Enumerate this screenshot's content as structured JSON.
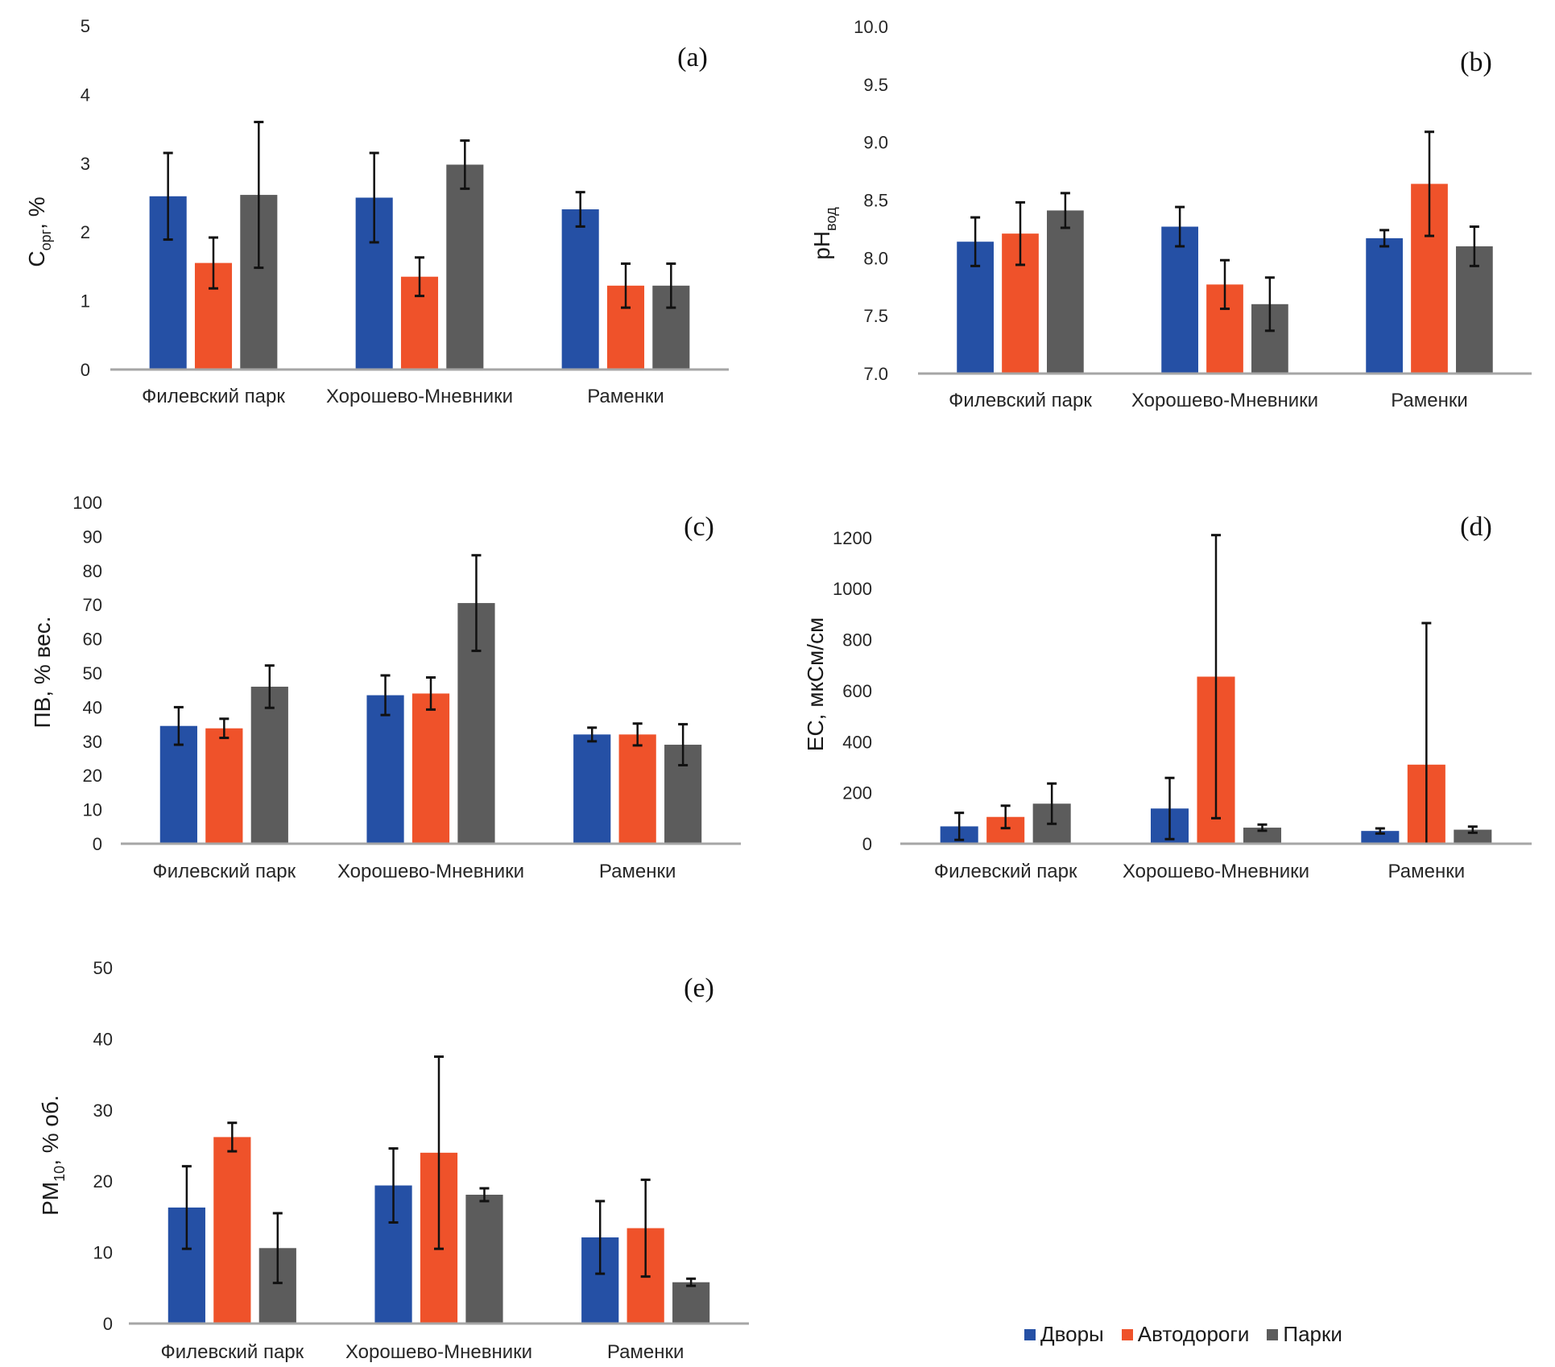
{
  "legend": {
    "series": [
      {
        "name": "Дворы",
        "color": "#2550a5"
      },
      {
        "name": "Автодороги",
        "color": "#ef522a"
      },
      {
        "name": "Парки",
        "color": "#5c5c5c"
      }
    ]
  },
  "chart_data": [
    {
      "id": "a",
      "panel_label": "(a)",
      "type": "bar",
      "ylabel_main": "C",
      "ylabel_sub": "орг",
      "ylabel_tail": ", %",
      "categories": [
        "Филевский парк",
        "Хорошево-Мневники",
        "Раменки"
      ],
      "ylim": [
        0,
        5
      ],
      "yticks": [
        0,
        1,
        2,
        3,
        4,
        5
      ],
      "ytick_labels": [
        "0",
        "1",
        "2",
        "3",
        "4",
        "5"
      ],
      "grid": false,
      "series": [
        {
          "name": "Дворы",
          "values": [
            2.52,
            2.5,
            2.33
          ],
          "err": [
            0.63,
            0.65,
            0.25
          ]
        },
        {
          "name": "Автодороги",
          "values": [
            1.55,
            1.35,
            1.22
          ],
          "err": [
            0.37,
            0.28,
            0.32
          ]
        },
        {
          "name": "Парки",
          "values": [
            2.54,
            2.98,
            1.22
          ],
          "err": [
            1.06,
            0.35,
            0.32
          ]
        }
      ]
    },
    {
      "id": "b",
      "panel_label": "(b)",
      "type": "bar",
      "ylabel_main": "pH",
      "ylabel_sub": "вод",
      "ylabel_tail": "",
      "categories": [
        "Филевский парк",
        "Хорошево-Мневники",
        "Раменки"
      ],
      "ylim": [
        7.0,
        10.0
      ],
      "yticks": [
        7.0,
        7.5,
        8.0,
        8.5,
        9.0,
        9.5,
        10.0
      ],
      "ytick_labels": [
        "7.0",
        "7.5",
        "8.0",
        "8.5",
        "9.0",
        "9.5",
        "10.0"
      ],
      "grid": false,
      "series": [
        {
          "name": "Дворы",
          "values": [
            8.14,
            8.27,
            8.17
          ],
          "err": [
            0.21,
            0.17,
            0.07
          ]
        },
        {
          "name": "Автодороги",
          "values": [
            8.21,
            7.77,
            8.64
          ],
          "err": [
            0.27,
            0.21,
            0.45
          ]
        },
        {
          "name": "Парки",
          "values": [
            8.41,
            7.6,
            8.1
          ],
          "err": [
            0.15,
            0.23,
            0.17
          ]
        }
      ]
    },
    {
      "id": "c",
      "panel_label": "(c)",
      "type": "bar",
      "ylabel_main": "ПВ, % вес.",
      "ylabel_sub": "",
      "ylabel_tail": "",
      "categories": [
        "Филевский парк",
        "Хорошево-Мневники",
        "Раменки"
      ],
      "ylim": [
        0,
        100
      ],
      "yticks": [
        0,
        10,
        20,
        30,
        40,
        50,
        60,
        70,
        80,
        90,
        100
      ],
      "ytick_labels": [
        "0",
        "10",
        "20",
        "30",
        "40",
        "50",
        "60",
        "70",
        "80",
        "90",
        "100"
      ],
      "grid": false,
      "series": [
        {
          "name": "Дворы",
          "values": [
            34.5,
            43.5,
            32.0
          ],
          "err": [
            5.5,
            5.8,
            2.0
          ]
        },
        {
          "name": "Автодороги",
          "values": [
            33.8,
            44.0,
            32.0
          ],
          "err": [
            2.8,
            4.7,
            3.2
          ]
        },
        {
          "name": "Парки",
          "values": [
            46.0,
            70.5,
            29.0
          ],
          "err": [
            6.2,
            14.0,
            6.0
          ]
        }
      ]
    },
    {
      "id": "d",
      "panel_label": "(d)",
      "type": "bar",
      "ylabel_main": "EC, мкСм/см",
      "ylabel_sub": "",
      "ylabel_tail": "",
      "categories": [
        "Филевский парк",
        "Хорошево-Мневники",
        "Раменки"
      ],
      "ylim": [
        0,
        1250
      ],
      "yticks": [
        0,
        200,
        400,
        600,
        800,
        1000,
        1200
      ],
      "ytick_labels": [
        "0",
        "200",
        "400",
        "600",
        "800",
        "1000",
        "1200"
      ],
      "grid": false,
      "series": [
        {
          "name": "Дворы",
          "values": [
            68,
            138,
            50
          ],
          "err": [
            53,
            120,
            10
          ]
        },
        {
          "name": "Автодороги",
          "values": [
            105,
            655,
            310
          ],
          "err": [
            44,
            555,
            555
          ]
        },
        {
          "name": "Парки",
          "values": [
            157,
            63,
            55
          ],
          "err": [
            79,
            12,
            12
          ]
        }
      ]
    },
    {
      "id": "e",
      "panel_label": "(e)",
      "type": "bar",
      "ylabel_main": "PM",
      "ylabel_sub": "10",
      "ylabel_tail": ", % об.",
      "categories": [
        "Филевский парк",
        "Хорошево-Мневники",
        "Раменки"
      ],
      "ylim": [
        0,
        50
      ],
      "yticks": [
        0,
        10,
        20,
        30,
        40,
        50
      ],
      "ytick_labels": [
        "0",
        "10",
        "20",
        "30",
        "40",
        "50"
      ],
      "grid": false,
      "series": [
        {
          "name": "Дворы",
          "values": [
            16.3,
            19.4,
            12.1
          ],
          "err": [
            5.8,
            5.2,
            5.1
          ]
        },
        {
          "name": "Автодороги",
          "values": [
            26.2,
            24.0,
            13.4
          ],
          "err": [
            2.0,
            13.5,
            6.8
          ]
        },
        {
          "name": "Парки",
          "values": [
            10.6,
            18.1,
            5.8
          ],
          "err": [
            4.9,
            0.9,
            0.5
          ]
        }
      ]
    }
  ]
}
